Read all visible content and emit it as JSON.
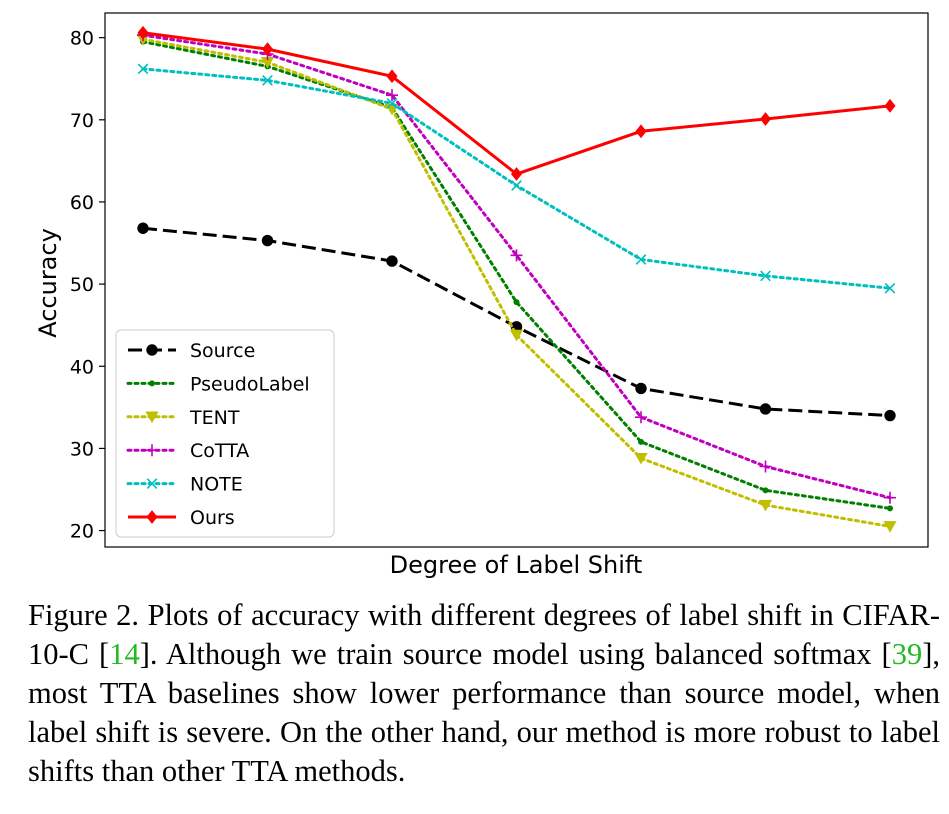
{
  "chart_data": {
    "type": "line",
    "xlabel": "Degree of Label Shift",
    "ylabel": "Accuracy",
    "x": [
      1,
      2,
      3,
      4,
      5,
      6,
      7
    ],
    "xticks": false,
    "ylim": [
      18,
      83
    ],
    "yticks": [
      20,
      30,
      40,
      50,
      60,
      70,
      80
    ],
    "grid": false,
    "legend_position": "lower-left",
    "series": [
      {
        "name": "Source",
        "color": "#000000",
        "dash": "dashed",
        "marker": "circle",
        "values": [
          56.8,
          55.3,
          52.8,
          44.8,
          37.3,
          34.8,
          34.0
        ]
      },
      {
        "name": "PseudoLabel",
        "color": "#007f00",
        "dash": "dotted",
        "marker": "dot",
        "values": [
          79.5,
          76.5,
          71.5,
          47.8,
          30.8,
          24.9,
          22.7
        ]
      },
      {
        "name": "TENT",
        "color": "#bfbf00",
        "dash": "dotted",
        "marker": "triangle-down",
        "values": [
          79.8,
          77.0,
          71.3,
          43.8,
          28.8,
          23.1,
          20.5
        ]
      },
      {
        "name": "CoTTA",
        "color": "#bf00bf",
        "dash": "dotted",
        "marker": "plus",
        "values": [
          80.3,
          78.0,
          73.0,
          53.5,
          33.8,
          27.8,
          24.0
        ]
      },
      {
        "name": "NOTE",
        "color": "#00bfbf",
        "dash": "dotted",
        "marker": "x",
        "values": [
          76.2,
          74.8,
          72.0,
          62.0,
          53.0,
          51.0,
          49.5
        ]
      },
      {
        "name": "Ours",
        "color": "#ff0000",
        "dash": "solid",
        "marker": "diamond",
        "values": [
          80.6,
          78.6,
          75.3,
          63.4,
          68.6,
          70.1,
          71.7
        ]
      }
    ]
  },
  "caption": {
    "part1": "Figure 2. Plots of accuracy with different degrees of label shift in CIFAR-10-C [",
    "cite1": "14",
    "part2": "]. Although we train source model using balanced softmax [",
    "cite2": "39",
    "part3": "], most TTA baselines show lower performance than source model, when label shift is severe. On the other hand, our method is more robust to label shifts than other TTA methods."
  }
}
